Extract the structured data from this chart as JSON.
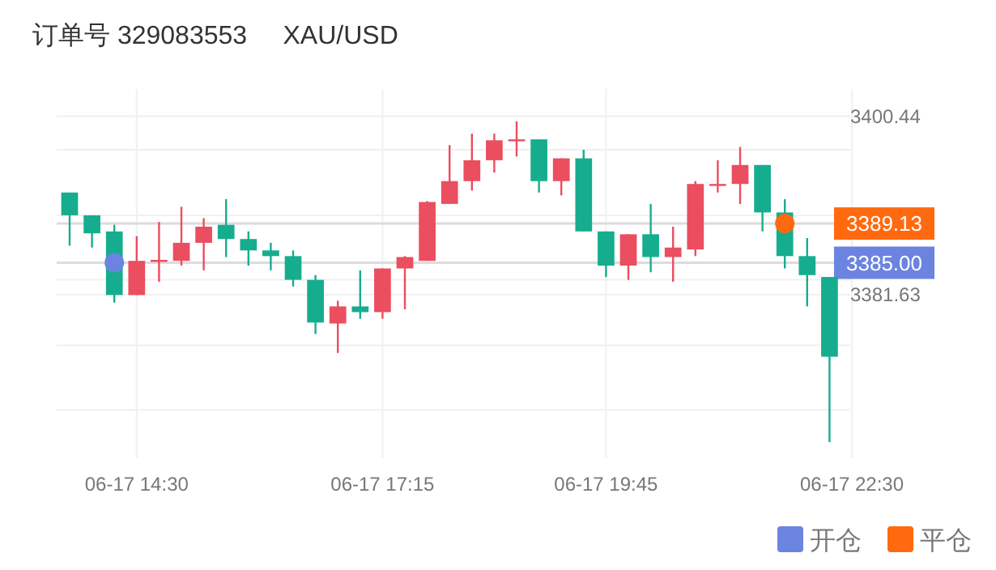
{
  "chart_data": {
    "type": "candlestick",
    "title": "订单号 329083553     XAU/USD",
    "categories": [
      null,
      null,
      null,
      "06-17 14:30",
      null,
      null,
      null,
      null,
      null,
      null,
      null,
      null,
      null,
      null,
      "06-17 17:15",
      null,
      null,
      null,
      null,
      null,
      null,
      null,
      null,
      null,
      "06-17 19:45",
      null,
      null,
      null,
      null,
      null,
      null,
      null,
      null,
      null,
      null,
      "06-17 22:30"
    ],
    "ohlc": [
      [
        3392.4,
        3392.4,
        3386.8,
        3390.0
      ],
      [
        3390.0,
        3390.0,
        3386.6,
        3388.1
      ],
      [
        3388.3,
        3389.0,
        3380.8,
        3381.6
      ],
      [
        3381.6,
        3387.8,
        3381.6,
        3385.2
      ],
      [
        3385.1,
        3389.3,
        3383.0,
        3385.3
      ],
      [
        3385.2,
        3390.9,
        3384.7,
        3387.1
      ],
      [
        3387.1,
        3389.7,
        3384.2,
        3388.8
      ],
      [
        3389.0,
        3391.7,
        3385.6,
        3387.5
      ],
      [
        3387.5,
        3388.3,
        3384.7,
        3386.3
      ],
      [
        3386.3,
        3387.1,
        3384.2,
        3385.7
      ],
      [
        3385.7,
        3386.3,
        3382.5,
        3383.2
      ],
      [
        3383.2,
        3383.7,
        3377.5,
        3378.7
      ],
      [
        3378.6,
        3381.0,
        3375.5,
        3380.4
      ],
      [
        3380.4,
        3384.2,
        3379.1,
        3379.8
      ],
      [
        3379.8,
        3384.4,
        3379.1,
        3384.4
      ],
      [
        3384.4,
        3385.7,
        3380.1,
        3385.6
      ],
      [
        3385.2,
        3391.5,
        3385.2,
        3391.4
      ],
      [
        3391.2,
        3397.4,
        3391.2,
        3393.6
      ],
      [
        3393.6,
        3398.6,
        3392.6,
        3395.8
      ],
      [
        3395.8,
        3398.6,
        3394.5,
        3397.9
      ],
      [
        3397.9,
        3399.9,
        3396.2,
        3398.0
      ],
      [
        3398.0,
        3398.0,
        3392.4,
        3393.6
      ],
      [
        3393.6,
        3396.0,
        3392.1,
        3396.0
      ],
      [
        3396.0,
        3396.9,
        3388.3,
        3388.3
      ],
      [
        3388.3,
        3388.3,
        3383.5,
        3384.7
      ],
      [
        3384.7,
        3388.0,
        3383.2,
        3388.0
      ],
      [
        3388.0,
        3391.2,
        3384.0,
        3385.6
      ],
      [
        3385.6,
        3388.8,
        3383.0,
        3386.6
      ],
      [
        3386.4,
        3393.6,
        3385.7,
        3393.3
      ],
      [
        3393.2,
        3395.8,
        3392.4,
        3393.3
      ],
      [
        3393.3,
        3397.2,
        3391.2,
        3395.3
      ],
      [
        3395.3,
        3395.3,
        3388.3,
        3390.3
      ],
      [
        3390.3,
        3391.7,
        3384.4,
        3385.7
      ],
      [
        3385.7,
        3387.6,
        3380.4,
        3383.7
      ],
      [
        3383.5,
        3383.5,
        3366.1,
        3375.1
      ],
      null
    ],
    "colors": [
      "#16ad8e",
      "#16ad8e",
      "#16ad8e",
      "#ea4e5f",
      "#ea4e5f",
      "#ea4e5f",
      "#ea4e5f",
      "#16ad8e",
      "#16ad8e",
      "#16ad8e",
      "#16ad8e",
      "#16ad8e",
      "#ea4e5f",
      "#16ad8e",
      "#ea4e5f",
      "#ea4e5f",
      "#ea4e5f",
      "#ea4e5f",
      "#ea4e5f",
      "#ea4e5f",
      "#ea4e5f",
      "#16ad8e",
      "#ea4e5f",
      "#16ad8e",
      "#16ad8e",
      "#ea4e5f",
      "#16ad8e",
      "#ea4e5f",
      "#ea4e5f",
      "#ea4e5f",
      "#ea4e5f",
      "#16ad8e",
      "#16ad8e",
      "#16ad8e",
      "#16ad8e",
      null
    ],
    "series": [
      {
        "name": "开仓",
        "type": "scatter",
        "color": "#6b84e0",
        "values": [
          null,
          null,
          3385.0,
          null,
          null,
          null,
          null,
          null,
          null,
          null,
          null,
          null,
          null,
          null,
          null,
          null,
          null,
          null,
          null,
          null,
          null,
          null,
          null,
          null,
          null,
          null,
          null,
          null,
          null,
          null,
          null,
          null,
          null,
          null,
          null,
          null
        ]
      },
      {
        "name": "平仓",
        "type": "scatter",
        "color": "#ff6a10",
        "values": [
          null,
          null,
          null,
          null,
          null,
          null,
          null,
          null,
          null,
          null,
          null,
          null,
          null,
          null,
          null,
          null,
          null,
          null,
          null,
          null,
          null,
          null,
          null,
          null,
          null,
          null,
          null,
          null,
          null,
          null,
          null,
          null,
          3389.13,
          null,
          null,
          null
        ]
      }
    ],
    "ref_lines": [
      {
        "axis": "y",
        "value": 3385.0,
        "label": "3385.00",
        "color": "#dcdcdc"
      },
      {
        "axis": "y",
        "value": 3389.13,
        "label": "3389.13",
        "color": "#dcdcdc"
      }
    ],
    "ylim": [
      3364.4,
      3403.3
    ],
    "yticks": [
      3400.44,
      {
        "value": 3396.9,
        "label": null
      },
      {
        "value": 3390.0,
        "label": null
      },
      {
        "value": 3383.2,
        "label": null
      },
      3381.63,
      {
        "value": 3376.3,
        "label": null
      },
      {
        "value": 3369.5,
        "label": null
      }
    ],
    "grid": true,
    "legend": "bottom right",
    "marker": "circle"
  }
}
